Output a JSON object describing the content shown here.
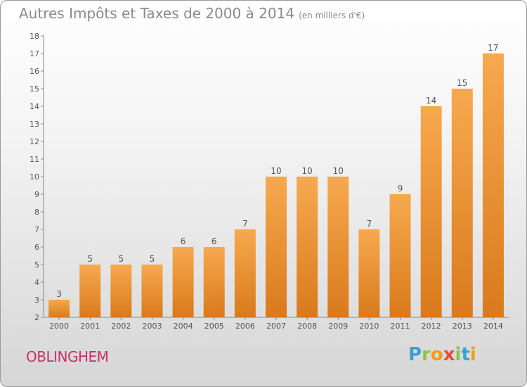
{
  "chart_data": {
    "type": "bar",
    "title": "Autres Impôts et Taxes de 2000 à 2014",
    "unit": "(en milliers d'€)",
    "categories": [
      "2000",
      "2001",
      "2002",
      "2003",
      "2004",
      "2005",
      "2006",
      "2007",
      "2008",
      "2009",
      "2010",
      "2011",
      "2012",
      "2013",
      "2014"
    ],
    "values": [
      3,
      5,
      5,
      5,
      6,
      6,
      7,
      10,
      10,
      10,
      7,
      9,
      14,
      15,
      17
    ],
    "ylim": [
      2,
      18
    ],
    "yticks": [
      2,
      3,
      4,
      5,
      6,
      7,
      8,
      9,
      10,
      11,
      12,
      13,
      14,
      15,
      16,
      17,
      18
    ],
    "xlabel": "",
    "ylabel": "",
    "grid": false
  },
  "footer": {
    "commune": "OBLINGHEM",
    "brand_letters": [
      "P",
      "r",
      "o",
      "x",
      "i",
      "t",
      "i"
    ]
  },
  "colors": {
    "bar_top": "#f7a94f",
    "bar_bottom": "#d97a1c",
    "text_grey": "#555555",
    "brand": [
      "#3aa0d8",
      "#8cc63f",
      "#f39c12",
      "#e74c3c",
      "#8cc63f",
      "#3aa0d8",
      "#f39c12"
    ]
  }
}
